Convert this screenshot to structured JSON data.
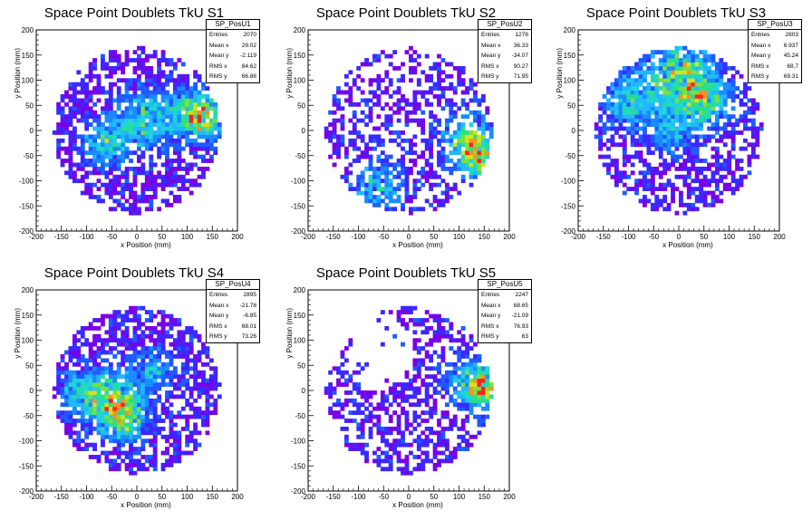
{
  "chart_data": [
    {
      "type": "heatmap",
      "title": "Space Point Doublets TkU S1",
      "xlabel": "x Position (mm)",
      "ylabel": "y Position (mm)",
      "xlim": [
        -200,
        200
      ],
      "ylim": [
        -200,
        200
      ],
      "xticks": [
        "-200",
        "-150",
        "-100",
        "-50",
        "0",
        "50",
        "100",
        "150",
        "200"
      ],
      "yticks": [
        "-200",
        "-150",
        "-100",
        "-50",
        "0",
        "50",
        "100",
        "150",
        "200"
      ],
      "stats": {
        "name": "SP_PosU1",
        "labels": [
          "Entries",
          "Mean x",
          "Mean y",
          "RMS x",
          "RMS y"
        ],
        "values": [
          "2070",
          "29.02",
          "-2.119",
          "84.62",
          "66.86"
        ]
      },
      "seed": 11,
      "occupancy": 0.62,
      "hotspots": [
        [
          -60,
          -20,
          30,
          2
        ],
        [
          20,
          20,
          40,
          1.8
        ],
        [
          110,
          40,
          30,
          2.2
        ],
        [
          140,
          20,
          25,
          2
        ]
      ],
      "holes": [],
      "grid": false,
      "legend": "top-right"
    },
    {
      "type": "heatmap",
      "title": "Space Point Doublets TkU S2",
      "xlabel": "x Position (mm)",
      "ylabel": "y Position (mm)",
      "xlim": [
        -200,
        200
      ],
      "ylim": [
        -200,
        200
      ],
      "xticks": [
        "-200",
        "-150",
        "-100",
        "-50",
        "0",
        "50",
        "100",
        "150",
        "200"
      ],
      "yticks": [
        "-200",
        "-150",
        "-100",
        "-50",
        "0",
        "50",
        "100",
        "150",
        "200"
      ],
      "stats": {
        "name": "SP_PosU2",
        "labels": [
          "Entries",
          "Mean x",
          "Mean y",
          "RMS x",
          "RMS y"
        ],
        "values": [
          "1276",
          "36.33",
          "-34.07",
          "90.27",
          "71.95"
        ]
      },
      "seed": 23,
      "occupancy": 0.42,
      "hotspots": [
        [
          120,
          -20,
          35,
          2.4
        ],
        [
          -60,
          -110,
          35,
          1.6
        ],
        [
          140,
          -60,
          25,
          2.2
        ]
      ],
      "holes": [],
      "grid": false,
      "legend": "top-right"
    },
    {
      "type": "heatmap",
      "title": "Space Point Doublets TkU S3",
      "xlabel": "x Position (mm)",
      "ylabel": "y Position (mm)",
      "xlim": [
        -200,
        200
      ],
      "ylim": [
        -200,
        200
      ],
      "xticks": [
        "-200",
        "-150",
        "-100",
        "-50",
        "0",
        "50",
        "100",
        "150",
        "200"
      ],
      "yticks": [
        "-200",
        "-150",
        "-100",
        "-50",
        "0",
        "50",
        "100",
        "150",
        "200"
      ],
      "stats": {
        "name": "SP_PosU3",
        "labels": [
          "Entries",
          "Mean x",
          "Mean y",
          "RMS x",
          "RMS y"
        ],
        "values": [
          "2803",
          "6.937",
          "45.24",
          "68.7",
          "69.31"
        ]
      },
      "seed": 37,
      "occupancy": 0.55,
      "hotspots": [
        [
          0,
          110,
          45,
          2.4
        ],
        [
          -100,
          60,
          35,
          1.8
        ],
        [
          50,
          60,
          35,
          2
        ],
        [
          -20,
          0,
          30,
          1.4
        ]
      ],
      "holes": [],
      "grid": false,
      "legend": "top-right"
    },
    {
      "type": "heatmap",
      "title": "Space Point Doublets TkU S4",
      "xlabel": "x Position (mm)",
      "ylabel": "y Position (mm)",
      "xlim": [
        -200,
        200
      ],
      "ylim": [
        -200,
        200
      ],
      "xticks": [
        "-200",
        "-150",
        "-100",
        "-50",
        "0",
        "50",
        "100",
        "150",
        "200"
      ],
      "yticks": [
        "-200",
        "-150",
        "-100",
        "-50",
        "0",
        "50",
        "100",
        "150",
        "200"
      ],
      "stats": {
        "name": "SP_PosU4",
        "labels": [
          "Entries",
          "Mean x",
          "Mean y",
          "RMS x",
          "RMS y"
        ],
        "values": [
          "2895",
          "-21.78",
          "-6.85",
          "68.01",
          "73.26"
        ]
      },
      "seed": 41,
      "occupancy": 0.6,
      "hotspots": [
        [
          -50,
          -20,
          35,
          2.6
        ],
        [
          -110,
          0,
          30,
          1.6
        ],
        [
          -20,
          -60,
          30,
          1.8
        ],
        [
          30,
          40,
          30,
          1.4
        ]
      ],
      "holes": [],
      "grid": false,
      "legend": "top-right"
    },
    {
      "type": "heatmap",
      "title": "Space Point Doublets TkU S5",
      "xlabel": "x Position (mm)",
      "ylabel": "y Position (mm)",
      "xlim": [
        -200,
        200
      ],
      "ylim": [
        -200,
        200
      ],
      "xticks": [
        "-200",
        "-150",
        "-100",
        "-50",
        "0",
        "50",
        "100",
        "150",
        "200"
      ],
      "yticks": [
        "-200",
        "-150",
        "-100",
        "-50",
        "0",
        "50",
        "100",
        "150",
        "200"
      ],
      "stats": {
        "name": "SP_PosU5",
        "labels": [
          "Entries",
          "Mean x",
          "Mean y",
          "RMS x",
          "RMS y"
        ],
        "values": [
          "2247",
          "68.65",
          "-21.09",
          "76.93",
          "63"
        ]
      },
      "seed": 53,
      "occupancy": 0.5,
      "hotspots": [
        [
          150,
          0,
          25,
          2.6
        ],
        [
          120,
          20,
          30,
          1.8
        ]
      ],
      "holes": [
        [
          -60,
          80,
          70
        ]
      ],
      "grid": false,
      "legend": "top-right"
    }
  ],
  "palette": [
    "#7a00e6",
    "#3c28ff",
    "#1f5bff",
    "#1a8cff",
    "#23b8ff",
    "#1fd6d6",
    "#27e08c",
    "#7ee03a",
    "#d2e31f",
    "#ff8f1f",
    "#ff2020"
  ]
}
